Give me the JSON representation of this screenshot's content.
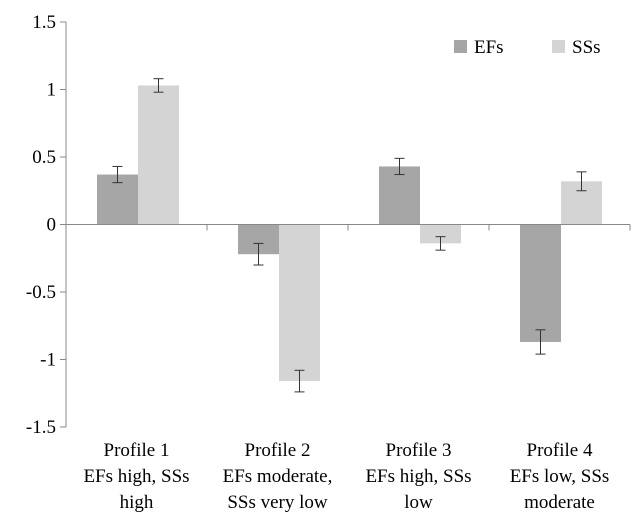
{
  "chart_data": {
    "type": "bar",
    "title": "",
    "xlabel": "",
    "ylabel": "",
    "ylim": [
      -1.5,
      1.5
    ],
    "yticks": [
      1.5,
      1,
      0.5,
      0,
      -0.5,
      -1,
      -1.5
    ],
    "ytick_labels": [
      "1.5",
      "1",
      "0.5",
      "0",
      "-0.5",
      "-1",
      "-1.5"
    ],
    "categories": [
      [
        "Profile 1",
        "EFs high, SSs",
        "high"
      ],
      [
        "Profile 2",
        "EFs moderate,",
        "SSs very low"
      ],
      [
        "Profile 3",
        "EFs high, SSs",
        "low"
      ],
      [
        "Profile 4",
        "EFs low, SSs",
        "moderate"
      ]
    ],
    "series": [
      {
        "name": "EFs",
        "color": "#a6a6a6",
        "values": [
          0.37,
          -0.22,
          0.43,
          -0.87
        ],
        "errors": [
          0.06,
          0.08,
          0.06,
          0.09
        ]
      },
      {
        "name": "SSs",
        "color": "#d4d4d4",
        "values": [
          1.03,
          -1.16,
          -0.14,
          0.32
        ],
        "errors": [
          0.05,
          0.08,
          0.05,
          0.07
        ]
      }
    ],
    "legend_position": "top-right",
    "grid": false
  }
}
